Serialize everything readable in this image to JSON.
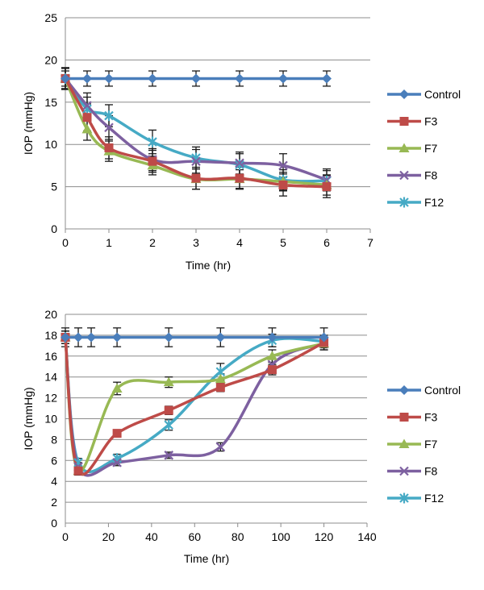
{
  "chart_data": [
    {
      "type": "line",
      "title": "",
      "xlabel": "Time (hr)",
      "ylabel": "IOP (mmHg)",
      "xlim": [
        0,
        7
      ],
      "ylim": [
        0,
        25
      ],
      "xticks": [
        0,
        1,
        2,
        3,
        4,
        5,
        6,
        7
      ],
      "yticks": [
        0,
        5,
        10,
        15,
        20,
        25
      ],
      "grid": "horizontal",
      "legend": "right",
      "series": [
        {
          "name": "Control",
          "color": "#4a7ebb",
          "marker": "diamond",
          "x": [
            0,
            0.5,
            1,
            2,
            3,
            4,
            5,
            6
          ],
          "y": [
            17.8,
            17.8,
            17.8,
            17.8,
            17.8,
            17.8,
            17.8,
            17.8
          ],
          "err": [
            0.9,
            0.9,
            0.9,
            0.9,
            0.9,
            0.9,
            0.9,
            0.9
          ]
        },
        {
          "name": "F3",
          "color": "#be4b48",
          "marker": "square",
          "x": [
            0,
            0.5,
            1,
            2,
            3,
            4,
            5,
            6
          ],
          "y": [
            17.8,
            13.2,
            9.6,
            8.0,
            6.0,
            6.0,
            5.2,
            5.0
          ],
          "err": [
            1.3,
            1.6,
            1.3,
            1.3,
            1.3,
            1.3,
            1.3,
            1.3
          ]
        },
        {
          "name": "F7",
          "color": "#98b954",
          "marker": "triangle",
          "x": [
            0,
            0.5,
            1,
            2,
            3,
            4,
            5,
            6
          ],
          "y": [
            17.8,
            11.8,
            9.2,
            7.5,
            5.9,
            5.9,
            5.6,
            5.2
          ],
          "err": [
            1.2,
            1.3,
            1.2,
            1.1,
            1.2,
            1.1,
            1.1,
            1.2
          ]
        },
        {
          "name": "F8",
          "color": "#7d60a0",
          "marker": "x",
          "x": [
            0,
            0.5,
            1,
            2,
            3,
            4,
            5,
            6
          ],
          "y": [
            17.8,
            14.6,
            12.0,
            8.2,
            8.0,
            7.8,
            7.5,
            5.8
          ],
          "err": [
            1.2,
            1.5,
            1.4,
            1.3,
            1.4,
            1.3,
            1.4,
            1.3
          ]
        },
        {
          "name": "F12",
          "color": "#46aac5",
          "marker": "star",
          "x": [
            0,
            0.5,
            1,
            2,
            3,
            4,
            5,
            6
          ],
          "y": [
            17.8,
            14.2,
            13.4,
            10.3,
            8.4,
            7.6,
            5.8,
            5.7
          ],
          "err": [
            1.2,
            1.4,
            1.3,
            1.4,
            1.3,
            1.3,
            1.2,
            1.2
          ]
        }
      ]
    },
    {
      "type": "line",
      "title": "",
      "xlabel": "Time (hr)",
      "ylabel": "IOP (mmHg)",
      "xlim": [
        0,
        140
      ],
      "ylim": [
        0,
        20
      ],
      "xticks": [
        0,
        20,
        40,
        60,
        80,
        100,
        120,
        140
      ],
      "yticks": [
        0,
        2,
        4,
        6,
        8,
        10,
        12,
        14,
        16,
        18,
        20
      ],
      "grid": "horizontal",
      "legend": "right",
      "series": [
        {
          "name": "Control",
          "color": "#4a7ebb",
          "marker": "diamond",
          "x": [
            0,
            6,
            12,
            24,
            48,
            72,
            96,
            120
          ],
          "y": [
            17.8,
            17.8,
            17.8,
            17.8,
            17.8,
            17.8,
            17.8,
            17.8
          ],
          "err": [
            0.9,
            0.9,
            0.9,
            0.9,
            0.9,
            0.9,
            0.9,
            0.9
          ]
        },
        {
          "name": "F3",
          "color": "#be4b48",
          "marker": "square",
          "x": [
            0,
            6,
            24,
            48,
            72,
            96,
            120
          ],
          "y": [
            17.8,
            5.0,
            8.6,
            10.8,
            13.0,
            14.7,
            17.3
          ],
          "err": [
            0.6,
            0.3,
            0.3,
            0.4,
            0.4,
            0.5,
            0.5
          ]
        },
        {
          "name": "F7",
          "color": "#98b954",
          "marker": "triangle",
          "x": [
            0,
            6,
            24,
            48,
            72,
            96,
            120
          ],
          "y": [
            17.8,
            5.0,
            12.9,
            13.5,
            13.8,
            16.0,
            17.2
          ],
          "err": [
            0.6,
            0.4,
            0.6,
            0.5,
            0.5,
            0.6,
            0.6
          ]
        },
        {
          "name": "F8",
          "color": "#7d60a0",
          "marker": "x",
          "x": [
            0,
            6,
            24,
            48,
            72,
            96,
            120
          ],
          "y": [
            17.8,
            5.4,
            5.8,
            6.5,
            7.3,
            15.2,
            17.2
          ],
          "err": [
            0.6,
            0.4,
            0.3,
            0.3,
            0.4,
            0.6,
            0.6
          ]
        },
        {
          "name": "F12",
          "color": "#46aac5",
          "marker": "star",
          "x": [
            0,
            6,
            24,
            48,
            72,
            96,
            120
          ],
          "y": [
            17.8,
            5.8,
            6.2,
            9.4,
            14.5,
            17.5,
            17.4
          ],
          "err": [
            0.6,
            0.4,
            0.4,
            0.5,
            0.8,
            0.6,
            0.6
          ]
        }
      ]
    }
  ]
}
